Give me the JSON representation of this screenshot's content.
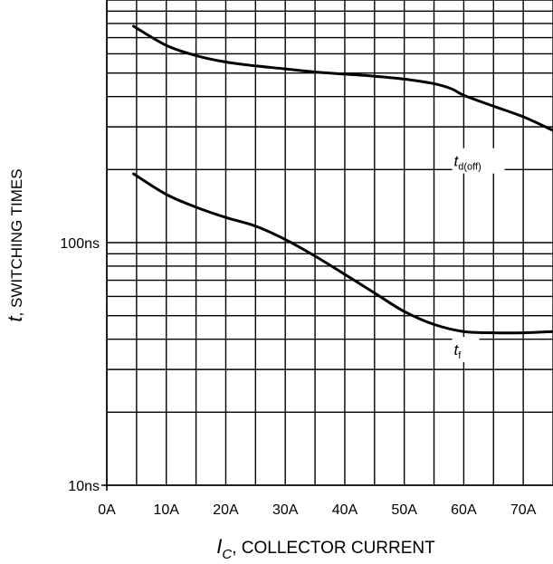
{
  "chart_data": {
    "type": "line",
    "title": "",
    "xlabel": {
      "symbol": "I",
      "subscript": "C",
      "text": ", COLLECTOR CURRENT"
    },
    "ylabel": {
      "symbol": "t",
      "text": ", SWITCHING TIMES"
    },
    "x_unit": "A",
    "y_unit": "ns",
    "xlim": [
      0,
      75
    ],
    "ylim": [
      10,
      1000
    ],
    "y_scale": "log",
    "grid": true,
    "x_ticks": [
      0,
      10,
      20,
      30,
      40,
      50,
      60,
      70
    ],
    "x_tick_labels": [
      "0A",
      "10A",
      "20A",
      "30A",
      "40A",
      "50A",
      "60A",
      "70A"
    ],
    "y_ticks": [
      10,
      100
    ],
    "y_tick_labels": [
      "10ns",
      "100ns"
    ],
    "series": [
      {
        "name": "td(off)",
        "label": {
          "main": "t",
          "sub": "d(off)"
        },
        "x": [
          4.5,
          10,
          15,
          20,
          25,
          30,
          35,
          40,
          45,
          50,
          55,
          58,
          60,
          65,
          70,
          75
        ],
        "y": [
          780,
          650,
          590,
          555,
          535,
          520,
          505,
          495,
          485,
          472,
          452,
          430,
          405,
          365,
          330,
          290
        ]
      },
      {
        "name": "tf",
        "label": {
          "main": "t",
          "sub": "f"
        },
        "x": [
          4.5,
          10,
          15,
          20,
          25,
          30,
          35,
          40,
          45,
          50,
          55,
          60,
          65,
          70,
          75
        ],
        "y": [
          192,
          158,
          140,
          127,
          117,
          103,
          88,
          74,
          62,
          52,
          46,
          43,
          42.5,
          42.5,
          43
        ]
      }
    ]
  }
}
